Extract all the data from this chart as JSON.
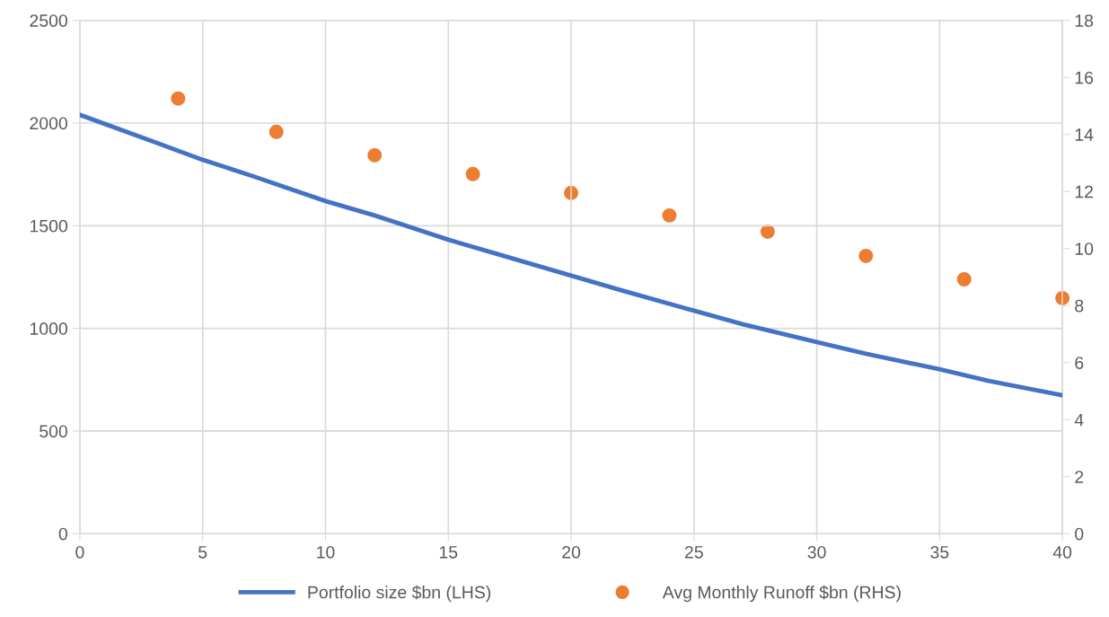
{
  "chart_data": {
    "type": "line",
    "series": [
      {
        "name": "Portfolio size $bn (LHS)",
        "color": "#4472c4",
        "x": [
          0,
          3,
          5,
          7,
          10,
          12,
          15,
          17,
          20,
          22,
          25,
          27,
          30,
          32,
          35,
          37,
          40
        ],
        "values": [
          2040,
          1909,
          1821,
          1743,
          1620,
          1550,
          1432,
          1362,
          1257,
          1187,
          1086,
          1020,
          933,
          876,
          801,
          744,
          674
        ]
      },
      {
        "name": "Avg Monthly Runoff $bn (RHS)",
        "type": "scatter",
        "marker": "circle",
        "axis": "y2",
        "color": "#ed7d31",
        "x": [
          4,
          8,
          12,
          16,
          20,
          24,
          28,
          32,
          36,
          40
        ],
        "values": [
          15.26,
          14.09,
          13.27,
          12.61,
          11.95,
          11.16,
          10.59,
          9.74,
          8.92,
          8.26
        ]
      }
    ],
    "xlim": [
      0,
      40
    ],
    "xticks": [
      0,
      5,
      10,
      15,
      20,
      25,
      30,
      35,
      40
    ],
    "ylim": [
      0,
      2500
    ],
    "yticks": [
      0,
      500,
      1000,
      1500,
      2000,
      2500
    ],
    "y2lim": [
      0,
      18
    ],
    "y2ticks": [
      0,
      2,
      4,
      6,
      8,
      10,
      12,
      14,
      16,
      18
    ],
    "grid": true,
    "legend": "bottom",
    "line_style": "solid"
  }
}
